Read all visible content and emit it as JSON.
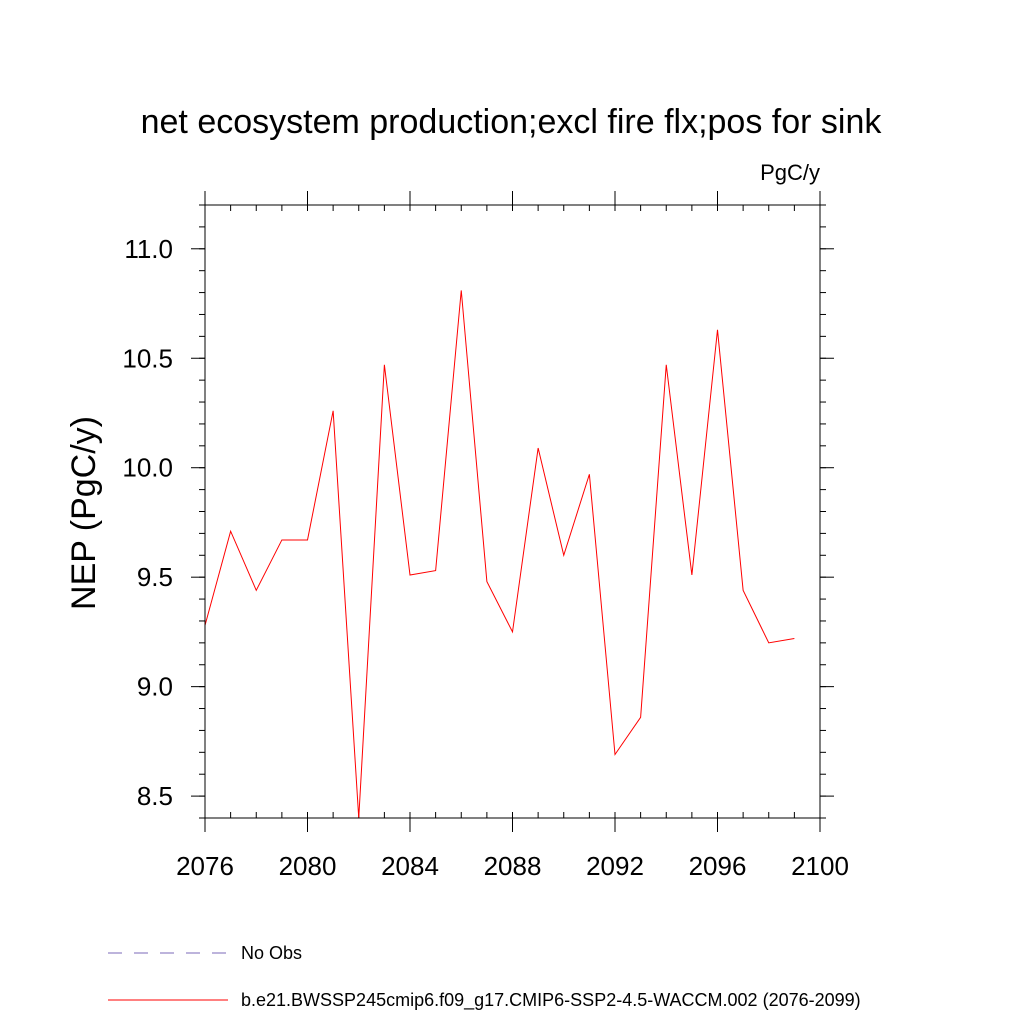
{
  "chart_data": {
    "type": "line",
    "title": "net ecosystem production;excl fire flx;pos for sink",
    "units": "PgC/y",
    "xlabel": "",
    "ylabel": "NEP  (PgC/y)",
    "xlim": [
      2076,
      2100
    ],
    "ylim": [
      8.4,
      11.2
    ],
    "x_ticks": [
      2076,
      2080,
      2084,
      2088,
      2092,
      2096,
      2100
    ],
    "x_tick_labels": [
      "2076",
      "2080",
      "2084",
      "2088",
      "2092",
      "2096",
      "2100"
    ],
    "y_ticks": [
      8.5,
      9.0,
      9.5,
      10.0,
      10.5,
      11.0
    ],
    "y_tick_labels": [
      "8.5",
      "9.0",
      "9.5",
      "10.0",
      "10.5",
      "11.0"
    ],
    "series": [
      {
        "name": "b.e21.BWSSP245cmip6.f09_g17.CMIP6-SSP2-4.5-WACCM.002 (2076-2099)",
        "color": "#ff0000",
        "style": "solid",
        "x": [
          2076,
          2077,
          2078,
          2079,
          2080,
          2081,
          2082,
          2083,
          2084,
          2085,
          2086,
          2087,
          2088,
          2089,
          2090,
          2091,
          2092,
          2093,
          2094,
          2095,
          2096,
          2097,
          2098,
          2099
        ],
        "y": [
          9.28,
          9.71,
          9.44,
          9.67,
          9.67,
          10.26,
          8.4,
          10.47,
          9.51,
          9.53,
          10.81,
          9.48,
          9.25,
          10.09,
          9.6,
          9.97,
          8.69,
          8.86,
          10.47,
          9.51,
          10.63,
          9.44,
          9.2,
          9.22
        ]
      }
    ],
    "legend": [
      {
        "label": "No Obs",
        "color": "#7b68b8",
        "style": "dashed"
      },
      {
        "label": "b.e21.BWSSP245cmip6.f09_g17.CMIP6-SSP2-4.5-WACCM.002 (2076-2099)",
        "color": "#ff0000",
        "style": "solid"
      }
    ]
  }
}
